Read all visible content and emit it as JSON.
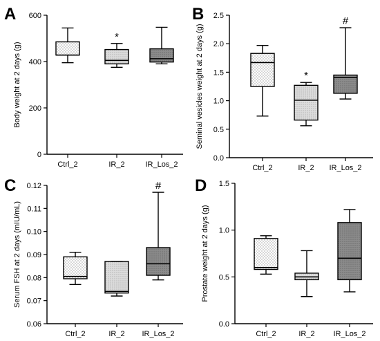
{
  "chart_data": [
    {
      "panel": "A",
      "type": "box",
      "ylabel": "Body weight at 2 days (g)",
      "ylim": [
        0,
        600
      ],
      "yticks": [
        0,
        200,
        400,
        600
      ],
      "ytick_labels": [
        "0",
        "200",
        "400",
        "600"
      ],
      "categories": [
        "Ctrl_2",
        "IR_2",
        "IR_Los_2"
      ],
      "boxes": [
        {
          "category": "Ctrl_2",
          "min": 395,
          "q1": 428,
          "median": 428,
          "q3": 485,
          "max": 545,
          "fill": "dots",
          "mark": ""
        },
        {
          "category": "IR_2",
          "min": 375,
          "q1": 390,
          "median": 405,
          "q3": 452,
          "max": 478,
          "fill": "fine",
          "mark": "*"
        },
        {
          "category": "IR_Los_2",
          "min": 390,
          "q1": 398,
          "median": 412,
          "q3": 455,
          "max": 548,
          "fill": "dark",
          "mark": ""
        }
      ]
    },
    {
      "panel": "B",
      "type": "box",
      "ylabel": "Seminal vesicles weight at 2 days (g)",
      "ylim": [
        0,
        2.5
      ],
      "yticks": [
        0,
        0.5,
        1.0,
        1.5,
        2.0,
        2.5
      ],
      "ytick_labels": [
        "0.0",
        "0.5",
        "1.0",
        "1.5",
        "2.0",
        "2.5"
      ],
      "categories": [
        "Ctrl_2",
        "IR_2",
        "IR_Los_2"
      ],
      "boxes": [
        {
          "category": "Ctrl_2",
          "min": 0.73,
          "q1": 1.25,
          "median": 1.67,
          "q3": 1.83,
          "max": 1.97,
          "fill": "dots",
          "mark": ""
        },
        {
          "category": "IR_2",
          "min": 0.56,
          "q1": 0.66,
          "median": 1.01,
          "q3": 1.27,
          "max": 1.32,
          "fill": "fine",
          "mark": "*"
        },
        {
          "category": "IR_Los_2",
          "min": 1.03,
          "q1": 1.13,
          "median": 1.41,
          "q3": 1.45,
          "max": 2.28,
          "fill": "dark",
          "mark": "#"
        }
      ]
    },
    {
      "panel": "C",
      "type": "box",
      "ylabel": "Serum FSH at 2 days (mIU/mL)",
      "ylim": [
        0.06,
        0.12
      ],
      "yticks": [
        0.06,
        0.07,
        0.08,
        0.09,
        0.1,
        0.11,
        0.12
      ],
      "ytick_labels": [
        "0.06",
        "0.07",
        "0.08",
        "0.09",
        "0.10",
        "0.11",
        "0.12"
      ],
      "categories": [
        "Ctrl_2",
        "IR_2",
        "IR_Los_2"
      ],
      "boxes": [
        {
          "category": "Ctrl_2",
          "min": 0.077,
          "q1": 0.0795,
          "median": 0.0805,
          "q3": 0.089,
          "max": 0.091,
          "fill": "dots",
          "mark": ""
        },
        {
          "category": "IR_2",
          "min": 0.072,
          "q1": 0.0733,
          "median": 0.074,
          "q3": 0.087,
          "max": 0.087,
          "fill": "fine",
          "mark": ""
        },
        {
          "category": "IR_Los_2",
          "min": 0.079,
          "q1": 0.081,
          "median": 0.086,
          "q3": 0.093,
          "max": 0.117,
          "fill": "dark",
          "mark": "#"
        }
      ]
    },
    {
      "panel": "D",
      "type": "box",
      "ylabel": "Prostate weight at 2 days (g)",
      "ylim": [
        0,
        1.5
      ],
      "yticks": [
        0,
        0.5,
        1.0,
        1.5
      ],
      "ytick_labels": [
        "0.0",
        "0.5",
        "1.0",
        "1.5"
      ],
      "categories": [
        "Ctrl_2",
        "IR_2",
        "IR_Los_2"
      ],
      "boxes": [
        {
          "category": "Ctrl_2",
          "min": 0.53,
          "q1": 0.58,
          "median": 0.6,
          "q3": 0.91,
          "max": 0.94,
          "fill": "dots",
          "mark": ""
        },
        {
          "category": "IR_2",
          "min": 0.29,
          "q1": 0.47,
          "median": 0.5,
          "q3": 0.54,
          "max": 0.78,
          "fill": "fine",
          "mark": ""
        },
        {
          "category": "IR_Los_2",
          "min": 0.34,
          "q1": 0.47,
          "median": 0.7,
          "q3": 1.08,
          "max": 1.22,
          "fill": "dark",
          "mark": ""
        }
      ]
    }
  ]
}
